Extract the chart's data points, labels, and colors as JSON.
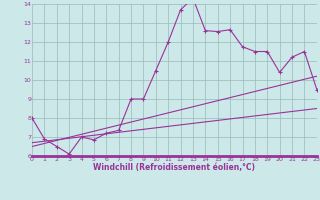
{
  "xlabel": "Windchill (Refroidissement éolien,°C)",
  "xlim": [
    0,
    23
  ],
  "ylim": [
    6,
    14
  ],
  "yticks": [
    6,
    7,
    8,
    9,
    10,
    11,
    12,
    13,
    14
  ],
  "xticks": [
    0,
    1,
    2,
    3,
    4,
    5,
    6,
    7,
    8,
    9,
    10,
    11,
    12,
    13,
    14,
    15,
    16,
    17,
    18,
    19,
    20,
    21,
    22,
    23
  ],
  "bg_color": "#cce8e8",
  "line_color": "#993399",
  "grid_color": "#99bbbb",
  "line1_x": [
    0,
    1,
    2,
    3,
    4,
    5,
    6,
    7,
    8,
    9,
    10,
    11,
    12,
    13,
    14,
    15,
    16,
    17,
    18,
    19,
    20,
    21,
    22,
    23
  ],
  "line1_y": [
    8.0,
    6.9,
    6.5,
    6.1,
    7.0,
    6.85,
    7.2,
    7.35,
    9.0,
    9.0,
    10.5,
    12.0,
    13.7,
    14.3,
    12.6,
    12.55,
    12.65,
    11.75,
    11.5,
    11.5,
    10.4,
    11.2,
    11.5,
    9.5
  ],
  "line2_x": [
    0,
    23
  ],
  "line2_y": [
    6.5,
    10.2
  ],
  "line3_x": [
    0,
    23
  ],
  "line3_y": [
    6.7,
    8.5
  ]
}
